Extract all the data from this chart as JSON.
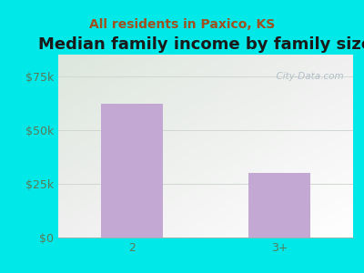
{
  "title": "Median family income by family size",
  "subtitle": "All residents in Paxico, KS",
  "categories": [
    "2",
    "3+"
  ],
  "values": [
    62000,
    30000
  ],
  "bar_color": "#c4a8d4",
  "background_color": "#00e8e8",
  "title_color": "#1a1a1a",
  "subtitle_color": "#a05020",
  "tick_label_color": "#5a7a5a",
  "yticks": [
    0,
    25000,
    50000,
    75000
  ],
  "ytick_labels": [
    "$0",
    "$25k",
    "$50k",
    "$75k"
  ],
  "ylim": [
    0,
    85000
  ],
  "title_fontsize": 13,
  "subtitle_fontsize": 10,
  "tick_fontsize": 9,
  "watermark": "  City-Data.com",
  "grid_color": "#d0d8d0",
  "grid_linewidth": 0.7
}
